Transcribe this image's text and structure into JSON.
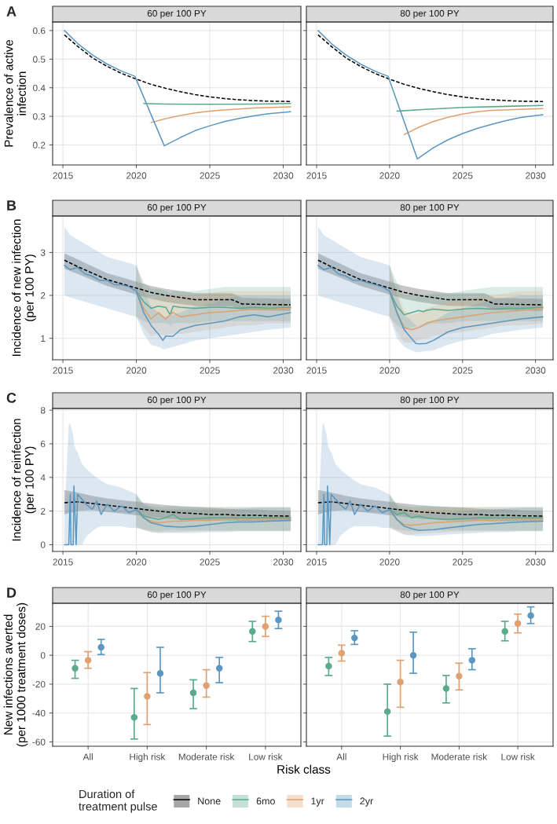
{
  "chart_data": [
    {
      "type": "line",
      "title": "60 per 100 PY",
      "ylabel": "Prevalence of active\ninfection",
      "annotations": [
        "A"
      ],
      "legend": "bottom",
      "legend_title": "Duration of\ntreatment pulse",
      "xlim": [
        2014.3,
        2031.2
      ],
      "xticks": [
        2015,
        2020,
        2025,
        2030
      ],
      "ylim": [
        0.13,
        0.63
      ],
      "yticks": [
        0.2,
        0.3,
        0.4,
        0.5,
        0.6
      ],
      "grid": true,
      "series": [
        {
          "name": "None",
          "color": "#000000",
          "line_style": "dashed",
          "x": [
            2015.1,
            2016,
            2017,
            2018,
            2019,
            2020,
            2021,
            2022,
            2023,
            2024,
            2025,
            2026,
            2027,
            2028,
            2029,
            2030.5
          ],
          "values": [
            0.585,
            0.545,
            0.505,
            0.475,
            0.45,
            0.43,
            0.412,
            0.398,
            0.386,
            0.376,
            0.368,
            0.362,
            0.358,
            0.355,
            0.353,
            0.352
          ]
        },
        {
          "name": "6mo",
          "color": "#5aaa8b",
          "x": [
            2020.5,
            2022,
            2025,
            2028,
            2030.5
          ],
          "values": [
            0.345,
            0.343,
            0.342,
            0.343,
            0.345
          ]
        },
        {
          "name": "1yr",
          "color": "#e0a070",
          "x": [
            2021,
            2022,
            2023,
            2024,
            2025,
            2026,
            2027,
            2028,
            2030.5
          ],
          "values": [
            0.278,
            0.292,
            0.303,
            0.312,
            0.318,
            0.322,
            0.326,
            0.329,
            0.333
          ]
        },
        {
          "name": "2yr",
          "color": "#5b97c0",
          "x": [
            2015.1,
            2016,
            2017,
            2018,
            2019,
            2019.9,
            2021.9,
            2023,
            2024,
            2025,
            2026,
            2027,
            2028,
            2029,
            2030.5
          ],
          "values": [
            0.6,
            0.555,
            0.515,
            0.483,
            0.458,
            0.44,
            0.197,
            0.226,
            0.25,
            0.267,
            0.282,
            0.293,
            0.302,
            0.309,
            0.316
          ]
        }
      ]
    },
    {
      "type": "line",
      "title": "80 per 100 PY",
      "tick_labels": "x",
      "xlim": [
        2014.3,
        2031.2
      ],
      "xticks": [
        2015,
        2020,
        2025,
        2030
      ],
      "ylim": [
        0.13,
        0.63
      ],
      "yticks": [
        0.2,
        0.3,
        0.4,
        0.5,
        0.6
      ],
      "grid": true,
      "series": [
        {
          "name": "None",
          "color": "#000000",
          "line_style": "dashed",
          "x": [
            2015.1,
            2016,
            2017,
            2018,
            2019,
            2020,
            2021,
            2022,
            2023,
            2024,
            2025,
            2026,
            2027,
            2028,
            2029,
            2030.5
          ],
          "values": [
            0.585,
            0.545,
            0.505,
            0.475,
            0.45,
            0.43,
            0.412,
            0.398,
            0.386,
            0.376,
            0.368,
            0.362,
            0.358,
            0.355,
            0.353,
            0.352
          ]
        },
        {
          "name": "6mo",
          "color": "#5aaa8b",
          "x": [
            2020.5,
            2022,
            2025,
            2028,
            2030.5
          ],
          "values": [
            0.318,
            0.323,
            0.331,
            0.335,
            0.338
          ]
        },
        {
          "name": "1yr",
          "color": "#e0a070",
          "x": [
            2021,
            2022,
            2023,
            2024,
            2025,
            2026,
            2027,
            2030.5
          ],
          "values": [
            0.236,
            0.262,
            0.282,
            0.297,
            0.308,
            0.316,
            0.321,
            0.327
          ]
        },
        {
          "name": "2yr",
          "color": "#5b97c0",
          "x": [
            2015.1,
            2016,
            2017,
            2018,
            2019,
            2019.9,
            2021.9,
            2023,
            2024,
            2025,
            2026,
            2027,
            2028,
            2029,
            2030.5
          ],
          "values": [
            0.6,
            0.555,
            0.515,
            0.483,
            0.458,
            0.44,
            0.151,
            0.19,
            0.218,
            0.24,
            0.258,
            0.272,
            0.285,
            0.296,
            0.306
          ]
        }
      ]
    },
    {
      "type": "line",
      "title": "60 per 100 PY",
      "ylabel": "Incidence of new infection\n(per 100 PY)",
      "annotations": [
        "B"
      ],
      "xlim": [
        2014.3,
        2031.2
      ],
      "xticks": [
        2015,
        2020,
        2025,
        2030
      ],
      "ylim": [
        0.5,
        3.85
      ],
      "yticks": [
        1,
        2,
        3
      ],
      "grid": true,
      "series": [
        {
          "name": "None",
          "color": "#000000",
          "line_style": "dashed",
          "x": [
            2015.1,
            2016,
            2017,
            2018,
            2019,
            2020,
            2021,
            2022,
            2023,
            2024,
            2025,
            2026,
            2026.5,
            2027.2,
            2030.5
          ],
          "values": [
            2.82,
            2.67,
            2.52,
            2.37,
            2.27,
            2.17,
            2.07,
            2.0,
            1.95,
            1.9,
            1.9,
            1.9,
            1.9,
            1.8,
            1.78
          ],
          "lower": [
            2.62,
            2.5,
            2.36,
            2.22,
            2.12,
            2.02,
            1.92,
            1.85,
            1.8,
            1.76,
            1.75,
            1.75,
            1.75,
            1.66,
            1.64
          ],
          "upper": [
            2.98,
            2.84,
            2.68,
            2.52,
            2.42,
            2.32,
            2.22,
            2.15,
            2.1,
            2.05,
            2.05,
            2.05,
            2.05,
            1.94,
            1.92
          ]
        },
        {
          "name": "6mo",
          "color": "#5aaa8b",
          "x": [
            2020,
            2020.5,
            2021,
            2021.5,
            2022,
            2022.3,
            2022.5,
            2023,
            2024,
            2025,
            2026,
            2027,
            2028,
            2029,
            2030.5
          ],
          "values": [
            2.1,
            1.85,
            1.7,
            1.75,
            1.72,
            1.55,
            1.75,
            1.72,
            1.7,
            1.72,
            1.72,
            1.7,
            1.72,
            1.7,
            1.72
          ],
          "lower": [
            1.5,
            1.4,
            1.35,
            1.35,
            1.35,
            1.3,
            1.35,
            1.35,
            1.35,
            1.4,
            1.4,
            1.4,
            1.4,
            1.4,
            1.4
          ],
          "upper": [
            2.7,
            2.3,
            2.15,
            2.15,
            2.1,
            2.05,
            2.1,
            2.1,
            2.1,
            2.15,
            2.2,
            2.2,
            2.2,
            2.2,
            2.2
          ]
        },
        {
          "name": "1yr",
          "color": "#e0a070",
          "x": [
            2020,
            2020.5,
            2021,
            2021.5,
            2022,
            2022.3,
            2022.5,
            2023,
            2024,
            2025,
            2026,
            2027,
            2028,
            2029,
            2030.5
          ],
          "values": [
            2.1,
            1.7,
            1.45,
            1.6,
            1.45,
            1.55,
            1.6,
            1.5,
            1.55,
            1.6,
            1.62,
            1.65,
            1.68,
            1.68,
            1.7
          ],
          "lower": [
            1.5,
            1.25,
            1.05,
            1.1,
            1.05,
            1.1,
            1.1,
            1.1,
            1.15,
            1.2,
            1.25,
            1.3,
            1.3,
            1.35,
            1.35
          ],
          "upper": [
            2.7,
            2.2,
            1.9,
            2.0,
            1.95,
            2.0,
            2.0,
            2.0,
            2.0,
            2.05,
            2.1,
            2.1,
            2.1,
            2.1,
            2.1
          ]
        },
        {
          "name": "2yr",
          "color": "#5b97c0",
          "x": [
            2015.1,
            2015.5,
            2016,
            2016.5,
            2017,
            2017.5,
            2018,
            2018.5,
            2019,
            2019.5,
            2020,
            2020.5,
            2021,
            2021.5,
            2021.8,
            2022,
            2022.5,
            2023,
            2024,
            2025,
            2026,
            2027,
            2028,
            2029,
            2030.5
          ],
          "values": [
            2.7,
            2.6,
            2.65,
            2.5,
            2.45,
            2.35,
            2.35,
            2.25,
            2.25,
            2.2,
            2.1,
            1.6,
            1.3,
            1.1,
            0.95,
            1.05,
            1.05,
            1.2,
            1.3,
            1.35,
            1.4,
            1.5,
            1.55,
            1.5,
            1.6
          ],
          "lower": [
            2.0,
            1.95,
            1.9,
            1.85,
            1.8,
            1.75,
            1.7,
            1.65,
            1.6,
            1.55,
            1.5,
            1.1,
            0.85,
            0.8,
            0.75,
            0.75,
            0.8,
            0.85,
            0.95,
            1.0,
            1.05,
            1.1,
            1.15,
            1.2,
            1.25
          ],
          "upper": [
            3.6,
            3.4,
            3.3,
            3.2,
            3.1,
            3.0,
            2.9,
            2.85,
            2.8,
            2.75,
            2.7,
            2.1,
            1.75,
            1.6,
            1.5,
            1.5,
            1.55,
            1.6,
            1.75,
            1.8,
            1.9,
            2.0,
            2.0,
            2.0,
            2.0
          ]
        }
      ]
    },
    {
      "type": "line",
      "title": "80 per 100 PY",
      "tick_labels": "x",
      "xlim": [
        2014.3,
        2031.2
      ],
      "xticks": [
        2015,
        2020,
        2025,
        2030
      ],
      "ylim": [
        0.5,
        3.85
      ],
      "yticks": [
        1,
        2,
        3
      ],
      "grid": true,
      "series": [
        {
          "name": "None",
          "color": "#000000",
          "line_style": "dashed",
          "x": [
            2015.1,
            2016,
            2017,
            2018,
            2019,
            2020,
            2021,
            2022,
            2023,
            2024,
            2025,
            2026,
            2026.5,
            2027.2,
            2030.5
          ],
          "values": [
            2.82,
            2.67,
            2.52,
            2.37,
            2.27,
            2.17,
            2.07,
            2.0,
            1.95,
            1.9,
            1.9,
            1.9,
            1.9,
            1.8,
            1.78
          ],
          "lower": [
            2.62,
            2.5,
            2.36,
            2.22,
            2.12,
            2.02,
            1.92,
            1.85,
            1.8,
            1.76,
            1.75,
            1.75,
            1.75,
            1.66,
            1.64
          ],
          "upper": [
            2.98,
            2.84,
            2.68,
            2.52,
            2.42,
            2.32,
            2.22,
            2.15,
            2.1,
            2.05,
            2.05,
            2.05,
            2.05,
            1.94,
            1.92
          ]
        },
        {
          "name": "6mo",
          "color": "#5aaa8b",
          "x": [
            2020,
            2020.5,
            2021,
            2021.5,
            2022,
            2022.3,
            2022.5,
            2023,
            2024,
            2025,
            2026,
            2027,
            2028,
            2029,
            2030.5
          ],
          "values": [
            2.1,
            1.75,
            1.55,
            1.6,
            1.65,
            1.62,
            1.65,
            1.68,
            1.65,
            1.68,
            1.7,
            1.68,
            1.7,
            1.7,
            1.72
          ],
          "lower": [
            1.5,
            1.3,
            1.2,
            1.25,
            1.3,
            1.3,
            1.3,
            1.35,
            1.35,
            1.4,
            1.4,
            1.4,
            1.4,
            1.4,
            1.4
          ],
          "upper": [
            2.7,
            2.3,
            2.0,
            2.0,
            2.0,
            2.0,
            2.0,
            2.05,
            2.05,
            2.1,
            2.15,
            2.2,
            2.2,
            2.2,
            2.2
          ]
        },
        {
          "name": "1yr",
          "color": "#e0a070",
          "x": [
            2020,
            2020.5,
            2021,
            2021.5,
            2022,
            2022.3,
            2022.5,
            2023,
            2024,
            2025,
            2026,
            2027,
            2028,
            2029,
            2030.5
          ],
          "values": [
            2.1,
            1.6,
            1.25,
            1.2,
            1.25,
            1.3,
            1.35,
            1.4,
            1.45,
            1.5,
            1.55,
            1.6,
            1.62,
            1.65,
            1.7
          ],
          "lower": [
            1.5,
            1.15,
            0.9,
            0.9,
            0.95,
            1.0,
            1.0,
            1.05,
            1.1,
            1.15,
            1.2,
            1.25,
            1.3,
            1.3,
            1.35
          ],
          "upper": [
            2.7,
            2.1,
            1.65,
            1.55,
            1.6,
            1.65,
            1.7,
            1.75,
            1.85,
            1.9,
            1.95,
            2.0,
            2.05,
            2.1,
            2.1
          ]
        },
        {
          "name": "2yr",
          "color": "#5b97c0",
          "x": [
            2015.1,
            2015.5,
            2016,
            2016.5,
            2017,
            2017.5,
            2018,
            2018.5,
            2019,
            2019.5,
            2020,
            2020.5,
            2021,
            2021.5,
            2021.8,
            2022,
            2022.5,
            2023,
            2024,
            2025,
            2026,
            2027,
            2028,
            2029,
            2030.5
          ],
          "values": [
            2.7,
            2.6,
            2.65,
            2.5,
            2.45,
            2.35,
            2.35,
            2.3,
            2.25,
            2.2,
            2.1,
            1.6,
            1.2,
            1.0,
            0.88,
            0.87,
            0.88,
            0.95,
            1.15,
            1.25,
            1.3,
            1.35,
            1.4,
            1.45,
            1.5
          ],
          "lower": [
            2.0,
            1.95,
            1.9,
            1.85,
            1.8,
            1.75,
            1.7,
            1.65,
            1.6,
            1.55,
            1.5,
            1.0,
            0.8,
            0.72,
            0.68,
            0.68,
            0.7,
            0.72,
            0.85,
            0.95,
            1.0,
            1.1,
            1.15,
            1.2,
            1.25
          ],
          "upper": [
            3.6,
            3.4,
            3.3,
            3.2,
            3.1,
            3.0,
            2.9,
            2.85,
            2.8,
            2.75,
            2.7,
            2.0,
            1.55,
            1.4,
            1.3,
            1.3,
            1.35,
            1.4,
            1.6,
            1.7,
            1.8,
            1.9,
            1.95,
            2.0,
            2.0
          ]
        }
      ]
    },
    {
      "type": "line",
      "title": "60 per 100 PY",
      "ylabel": "Incidence of reinfection\n(per 100 PY)",
      "annotations": [
        "C"
      ],
      "xlim": [
        2014.3,
        2031.2
      ],
      "xticks": [
        2015,
        2020,
        2025,
        2030
      ],
      "ylim": [
        -0.4,
        8.1
      ],
      "yticks": [
        0,
        2,
        4,
        6,
        8
      ],
      "grid": true,
      "series": [
        {
          "name": "None",
          "color": "#000000",
          "line_style": "dashed",
          "x": [
            2015.1,
            2016,
            2017,
            2018,
            2019,
            2020,
            2021,
            2022,
            2023,
            2024,
            2025,
            2026,
            2027,
            2028,
            2029,
            2030.5
          ],
          "values": [
            2.5,
            2.55,
            2.45,
            2.35,
            2.25,
            2.15,
            2.05,
            1.95,
            1.9,
            1.85,
            1.8,
            1.8,
            1.75,
            1.75,
            1.72,
            1.7
          ],
          "lower": [
            1.8,
            2.0,
            2.05,
            1.95,
            1.85,
            1.75,
            1.65,
            1.55,
            1.5,
            1.45,
            1.45,
            1.45,
            1.4,
            1.4,
            1.4,
            1.4
          ],
          "upper": [
            3.25,
            3.1,
            2.9,
            2.75,
            2.65,
            2.55,
            2.45,
            2.35,
            2.3,
            2.25,
            2.2,
            2.15,
            2.1,
            2.1,
            2.05,
            2.0
          ]
        },
        {
          "name": "6mo",
          "color": "#5aaa8b",
          "x": [
            2020,
            2020.5,
            2021,
            2021.5,
            2022,
            2022.5,
            2023,
            2024,
            2025,
            2026,
            2027,
            2028,
            2029,
            2030.5
          ],
          "values": [
            2.1,
            1.7,
            1.6,
            1.5,
            1.6,
            1.8,
            1.5,
            1.55,
            1.6,
            1.6,
            1.6,
            1.6,
            1.6,
            1.6
          ],
          "lower": [
            1.1,
            0.9,
            0.85,
            0.8,
            0.85,
            0.9,
            0.85,
            0.85,
            0.85,
            0.85,
            0.85,
            0.85,
            0.85,
            0.85
          ],
          "upper": [
            3.0,
            2.4,
            2.3,
            2.25,
            2.25,
            2.3,
            2.25,
            2.25,
            2.25,
            2.25,
            2.25,
            2.25,
            2.25,
            2.25
          ]
        },
        {
          "name": "1yr",
          "color": "#e0a070",
          "x": [
            2020,
            2020.5,
            2021,
            2021.5,
            2022,
            2022.5,
            2023,
            2024,
            2025,
            2026,
            2027,
            2028,
            2029,
            2030.5
          ],
          "values": [
            2.1,
            1.6,
            1.4,
            1.3,
            1.35,
            1.4,
            1.4,
            1.45,
            1.45,
            1.5,
            1.5,
            1.5,
            1.5,
            1.5
          ],
          "lower": [
            1.0,
            0.85,
            0.75,
            0.7,
            0.75,
            0.75,
            0.75,
            0.8,
            0.8,
            0.8,
            0.8,
            0.8,
            0.8,
            0.8
          ],
          "upper": [
            2.9,
            2.3,
            2.2,
            2.1,
            2.1,
            2.15,
            2.15,
            2.15,
            2.2,
            2.2,
            2.2,
            2.2,
            2.2,
            2.2
          ]
        },
        {
          "name": "2yr",
          "color": "#5b97c0",
          "x": [
            2015.1,
            2015.4,
            2015.5,
            2015.55,
            2015.7,
            2015.75,
            2015.9,
            2016,
            2016.3,
            2016.6,
            2017,
            2017.3,
            2017.6,
            2018,
            2018.5,
            2019,
            2019.5,
            2020,
            2020.5,
            2021,
            2021.5,
            2022,
            2023,
            2024,
            2025,
            2026,
            2027,
            2028,
            2029,
            2030.5
          ],
          "values": [
            0,
            0,
            3.0,
            0,
            0,
            3.5,
            0,
            3.0,
            2.7,
            2.4,
            2.1,
            2.6,
            1.8,
            2.4,
            2.0,
            2.3,
            1.9,
            2.1,
            1.6,
            1.3,
            1.2,
            1.1,
            1.05,
            1.1,
            1.2,
            1.3,
            1.35,
            1.35,
            1.4,
            1.45
          ],
          "lower": [
            0,
            0,
            0,
            0,
            0,
            0,
            0,
            0,
            0,
            0.5,
            0.8,
            1.0,
            1.1,
            1.1,
            1.1,
            1.1,
            1.0,
            1.0,
            0.9,
            0.75,
            0.7,
            0.7,
            0.7,
            0.7,
            0.75,
            0.75,
            0.8,
            0.8,
            0.8,
            0.8
          ],
          "upper": [
            1.5,
            7.2,
            7.2,
            7.0,
            6.5,
            6.0,
            5.6,
            5.5,
            4.8,
            4.5,
            4.2,
            4.0,
            3.8,
            3.6,
            3.5,
            3.4,
            3.2,
            3.0,
            2.4,
            2.2,
            2.1,
            2.1,
            2.1,
            2.1,
            2.1,
            2.1,
            2.15,
            2.2,
            2.2,
            2.2
          ]
        }
      ]
    },
    {
      "type": "line",
      "title": "80 per 100 PY",
      "tick_labels": "x",
      "xlim": [
        2014.3,
        2031.2
      ],
      "xticks": [
        2015,
        2020,
        2025,
        2030
      ],
      "ylim": [
        -0.4,
        8.1
      ],
      "yticks": [
        0,
        2,
        4,
        6,
        8
      ],
      "grid": true,
      "series": [
        {
          "name": "None",
          "color": "#000000",
          "line_style": "dashed",
          "x": [
            2015.1,
            2016,
            2017,
            2018,
            2019,
            2020,
            2021,
            2022,
            2023,
            2024,
            2025,
            2026,
            2027,
            2028,
            2029,
            2030.5
          ],
          "values": [
            2.5,
            2.55,
            2.45,
            2.35,
            2.25,
            2.15,
            2.05,
            1.95,
            1.9,
            1.85,
            1.8,
            1.8,
            1.75,
            1.75,
            1.72,
            1.7
          ],
          "lower": [
            1.8,
            2.0,
            2.05,
            1.95,
            1.85,
            1.75,
            1.65,
            1.55,
            1.5,
            1.45,
            1.45,
            1.45,
            1.4,
            1.4,
            1.4,
            1.4
          ],
          "upper": [
            3.25,
            3.1,
            2.9,
            2.75,
            2.65,
            2.55,
            2.45,
            2.35,
            2.3,
            2.25,
            2.2,
            2.15,
            2.1,
            2.1,
            2.05,
            2.0
          ]
        },
        {
          "name": "6mo",
          "color": "#5aaa8b",
          "x": [
            2020,
            2020.5,
            2021,
            2021.5,
            2022,
            2022.5,
            2023,
            2024,
            2025,
            2026,
            2027,
            2028,
            2029,
            2030.5
          ],
          "values": [
            2.1,
            1.8,
            1.9,
            1.6,
            1.7,
            1.6,
            1.55,
            1.5,
            1.55,
            1.6,
            1.6,
            1.6,
            1.6,
            1.6
          ],
          "lower": [
            1.1,
            0.9,
            0.85,
            0.8,
            0.85,
            0.9,
            0.85,
            0.85,
            0.85,
            0.85,
            0.85,
            0.85,
            0.85,
            0.85
          ],
          "upper": [
            3.0,
            2.4,
            2.3,
            2.25,
            2.25,
            2.3,
            2.25,
            2.25,
            2.25,
            2.25,
            2.25,
            2.25,
            2.25,
            2.25
          ]
        },
        {
          "name": "1yr",
          "color": "#e0a070",
          "x": [
            2020,
            2020.5,
            2021,
            2021.5,
            2022,
            2022.5,
            2023,
            2024,
            2025,
            2026,
            2027,
            2028,
            2029,
            2030.5
          ],
          "values": [
            2.1,
            1.5,
            1.2,
            1.15,
            1.2,
            1.25,
            1.3,
            1.35,
            1.4,
            1.45,
            1.45,
            1.5,
            1.5,
            1.5
          ],
          "lower": [
            1.0,
            0.8,
            0.6,
            0.6,
            0.65,
            0.7,
            0.7,
            0.75,
            0.8,
            0.8,
            0.8,
            0.8,
            0.8,
            0.8
          ],
          "upper": [
            2.9,
            2.3,
            2.2,
            2.1,
            2.1,
            2.15,
            2.15,
            2.15,
            2.2,
            2.2,
            2.2,
            2.2,
            2.2,
            2.2
          ]
        },
        {
          "name": "2yr",
          "color": "#5b97c0",
          "x": [
            2015.1,
            2015.4,
            2015.5,
            2015.55,
            2015.7,
            2015.75,
            2015.9,
            2016,
            2016.3,
            2016.6,
            2017,
            2017.3,
            2017.6,
            2018,
            2018.5,
            2019,
            2019.5,
            2020,
            2020.5,
            2021,
            2021.5,
            2022,
            2023,
            2024,
            2025,
            2026,
            2027,
            2028,
            2029,
            2030.5
          ],
          "values": [
            0,
            0,
            3.0,
            0,
            0,
            3.5,
            0,
            3.0,
            2.7,
            2.4,
            2.1,
            2.6,
            1.8,
            2.4,
            2.0,
            2.3,
            1.9,
            2.1,
            1.5,
            1.1,
            0.95,
            0.85,
            0.9,
            1.0,
            1.1,
            1.2,
            1.25,
            1.3,
            1.35,
            1.4
          ],
          "lower": [
            0,
            0,
            0,
            0,
            0,
            0,
            0,
            0,
            0,
            0.5,
            0.8,
            1.0,
            1.1,
            1.1,
            1.1,
            1.1,
            1.0,
            1.0,
            0.8,
            0.6,
            0.55,
            0.5,
            0.55,
            0.6,
            0.65,
            0.7,
            0.75,
            0.75,
            0.8,
            0.8
          ],
          "upper": [
            1.5,
            7.2,
            7.2,
            7.0,
            6.5,
            6.0,
            5.6,
            5.5,
            4.8,
            4.5,
            4.2,
            4.0,
            3.8,
            3.6,
            3.5,
            3.4,
            3.2,
            3.0,
            2.3,
            2.0,
            1.9,
            1.8,
            1.85,
            1.9,
            2.0,
            2.05,
            2.1,
            2.15,
            2.2,
            2.2
          ]
        }
      ]
    },
    {
      "type": "scatter",
      "title": "60 per 100 PY",
      "ylabel": "New infections averted\n(per 1000 treatment doses)",
      "xlabel": "Risk class",
      "annotations": [
        "D"
      ],
      "categories": [
        "All",
        "High risk",
        "Moderate risk",
        "Low risk"
      ],
      "ylim": [
        -63,
        36
      ],
      "yticks": [
        -60,
        -40,
        -20,
        0,
        20
      ],
      "grid": true,
      "marker": "circle",
      "series": [
        {
          "name": "6mo",
          "color": "#5aaa8b",
          "values": [
            -9,
            -43,
            -26,
            16.5
          ],
          "errors": [
            [
              -16,
              -3.5
            ],
            [
              -58,
              -23
            ],
            [
              -37,
              -17
            ],
            [
              9.5,
              23.5
            ]
          ]
        },
        {
          "name": "1yr",
          "color": "#e0a070",
          "values": [
            -3.5,
            -28.5,
            -21,
            20
          ],
          "errors": [
            [
              -9,
              2.5
            ],
            [
              -48,
              -12
            ],
            [
              -29,
              -10
            ],
            [
              13,
              27
            ]
          ]
        },
        {
          "name": "2yr",
          "color": "#5b97c0",
          "values": [
            5.5,
            -12.5,
            -9,
            24.5
          ],
          "errors": [
            [
              0.5,
              11
            ],
            [
              -26,
              5.5
            ],
            [
              -19,
              -1.5
            ],
            [
              18.5,
              30.5
            ]
          ]
        }
      ]
    },
    {
      "type": "scatter",
      "title": "80 per 100 PY",
      "tick_labels": "x",
      "categories": [
        "All",
        "High risk",
        "Moderate risk",
        "Low risk"
      ],
      "ylim": [
        -63,
        36
      ],
      "yticks": [
        -60,
        -40,
        -20,
        0,
        20
      ],
      "grid": true,
      "marker": "circle",
      "series": [
        {
          "name": "6mo",
          "color": "#5aaa8b",
          "values": [
            -7.5,
            -39,
            -23,
            16.5
          ],
          "errors": [
            [
              -14,
              -1.5
            ],
            [
              -56,
              -20
            ],
            [
              -33,
              -14
            ],
            [
              10,
              23.5
            ]
          ]
        },
        {
          "name": "1yr",
          "color": "#e0a070",
          "values": [
            1.5,
            -18.5,
            -14.5,
            22
          ],
          "errors": [
            [
              -4,
              7
            ],
            [
              -36,
              -3.5
            ],
            [
              -24,
              -5.5
            ],
            [
              15.5,
              28.5
            ]
          ]
        },
        {
          "name": "2yr",
          "color": "#5b97c0",
          "values": [
            12,
            0,
            -3.5,
            27.5
          ],
          "errors": [
            [
              7.5,
              17
            ],
            [
              -12.5,
              16
            ],
            [
              -10,
              4.5
            ],
            [
              22,
              33.5
            ]
          ]
        }
      ]
    }
  ]
}
